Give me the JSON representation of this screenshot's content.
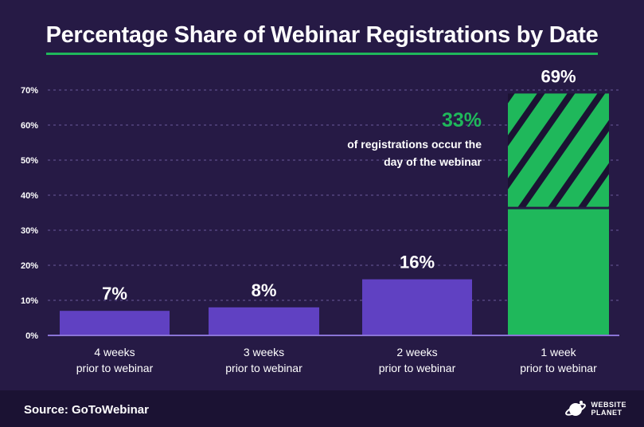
{
  "title": "Percentage Share of Webinar Registrations by Date",
  "source": "Source: GoToWebinar",
  "logo": {
    "line1": "WEBSITE",
    "line2": "PLANET",
    "icon": "planet-icon"
  },
  "colors": {
    "background": "#261a45",
    "purple_bar": "#6041c2",
    "green_bar": "#1fb85b",
    "highlight_text": "#1fb85b",
    "grid": "#6a5a9a"
  },
  "annotation": {
    "value": "33%",
    "line1": "of registrations occur the",
    "line2": "day of the webinar"
  },
  "chart_data": {
    "type": "bar",
    "categories": [
      [
        "4 weeks",
        "prior to webinar"
      ],
      [
        "3 weeks",
        "prior to webinar"
      ],
      [
        "2 weeks",
        "prior to webinar"
      ],
      [
        "1 week",
        "prior to webinar"
      ]
    ],
    "values": [
      7,
      8,
      16,
      69
    ],
    "data_labels": [
      "7%",
      "8%",
      "16%",
      "69%"
    ],
    "highlight_segment": {
      "category_index": 3,
      "from": 36,
      "to": 69,
      "value": 33
    },
    "yticks": [
      0,
      10,
      20,
      30,
      40,
      50,
      60,
      70
    ],
    "ytick_labels": [
      "0%",
      "10%",
      "20%",
      "30%",
      "40%",
      "50%",
      "60%",
      "70%"
    ],
    "ylim": [
      0,
      70
    ],
    "grid": true,
    "title": "Percentage Share of Webinar Registrations by Date",
    "xlabel": "",
    "ylabel": ""
  }
}
